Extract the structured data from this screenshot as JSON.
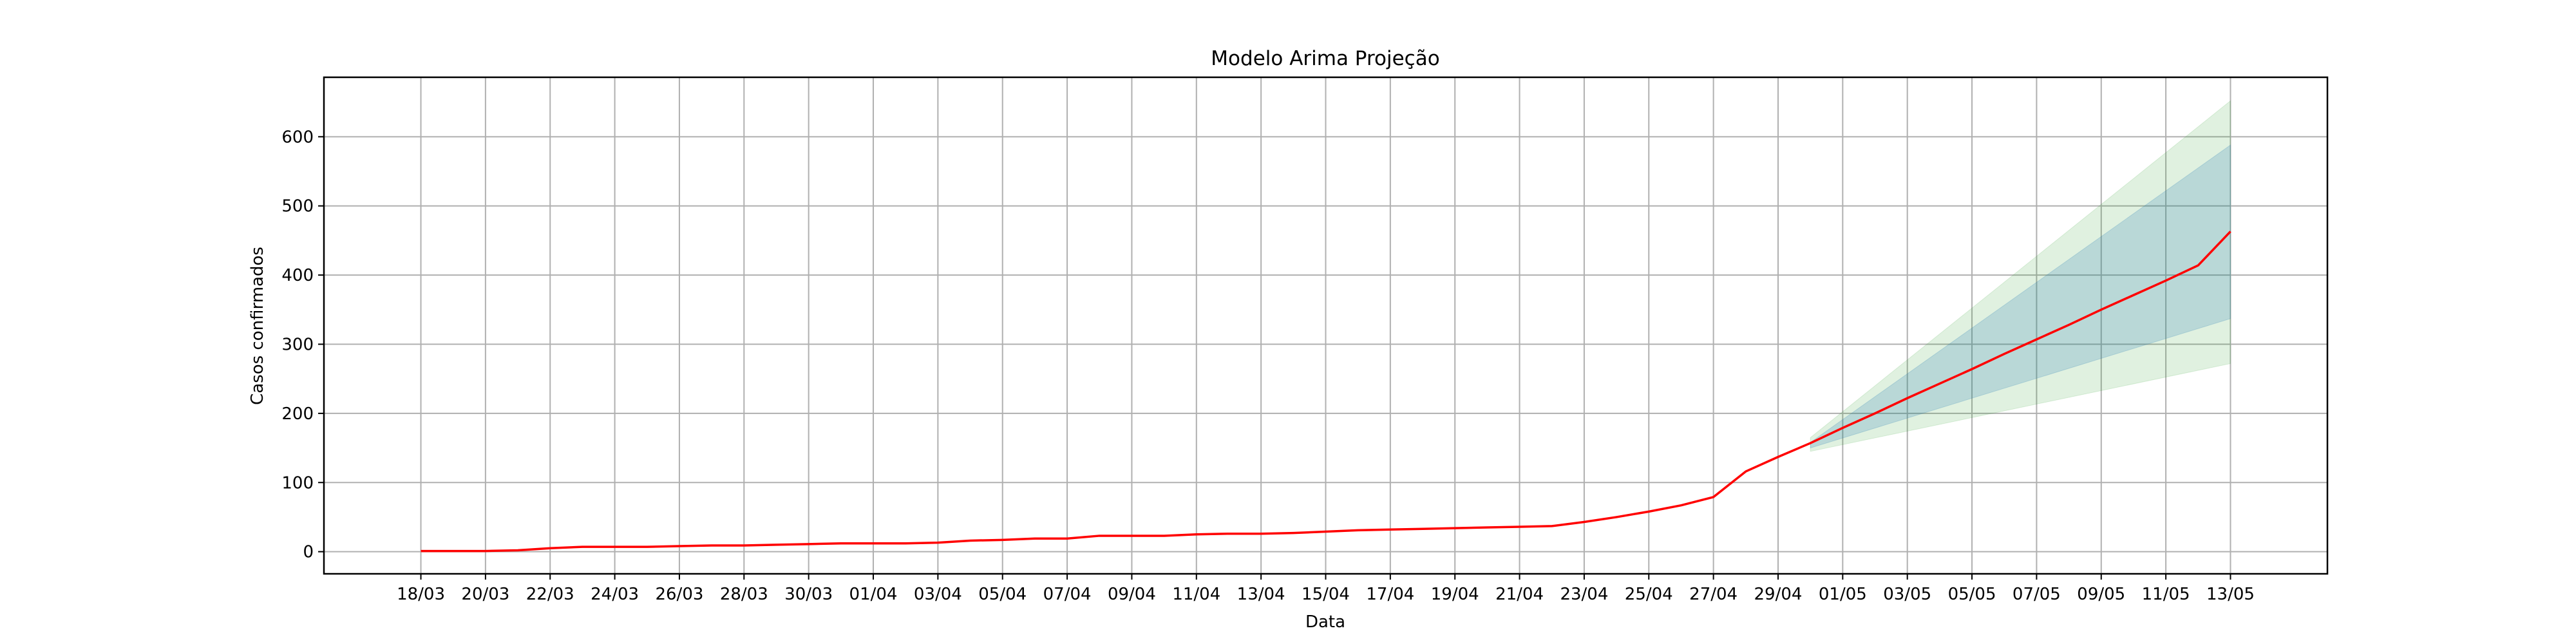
{
  "chart_data": {
    "type": "line",
    "title": "Modelo Arima Projeção",
    "xlabel": "Data",
    "ylabel": "Casos confirmados",
    "grid": true,
    "colors": {
      "line": "#ff0000",
      "ci_outer": "#2ca02c",
      "ci_inner": "#1f77b4"
    },
    "x_ticks": [
      "18/03",
      "20/03",
      "22/03",
      "24/03",
      "26/03",
      "28/03",
      "30/03",
      "01/04",
      "03/04",
      "05/04",
      "07/04",
      "09/04",
      "11/04",
      "13/04",
      "15/04",
      "17/04",
      "19/04",
      "21/04",
      "23/04",
      "25/04",
      "27/04",
      "29/04",
      "01/05",
      "03/05",
      "05/05",
      "07/05",
      "09/05",
      "11/05",
      "13/05"
    ],
    "y_ticks": [
      0,
      100,
      200,
      300,
      400,
      500,
      600
    ],
    "ylim": [
      -32,
      686
    ],
    "xlim_dates": [
      "2020-03-15",
      "2020-05-16"
    ],
    "series": [
      {
        "x": [
          "2020-03-18",
          "2020-03-19",
          "2020-03-20",
          "2020-03-21",
          "2020-03-22",
          "2020-03-23",
          "2020-03-24",
          "2020-03-25",
          "2020-03-26",
          "2020-03-27",
          "2020-03-28",
          "2020-03-29",
          "2020-03-30",
          "2020-03-31",
          "2020-04-01",
          "2020-04-02",
          "2020-04-03",
          "2020-04-04",
          "2020-04-05",
          "2020-04-06",
          "2020-04-07",
          "2020-04-08",
          "2020-04-09",
          "2020-04-10",
          "2020-04-11",
          "2020-04-12",
          "2020-04-13",
          "2020-04-14",
          "2020-04-15",
          "2020-04-16",
          "2020-04-17",
          "2020-04-18",
          "2020-04-19",
          "2020-04-20",
          "2020-04-21",
          "2020-04-22",
          "2020-04-23",
          "2020-04-24",
          "2020-04-25",
          "2020-04-26",
          "2020-04-27",
          "2020-04-28",
          "2020-04-29",
          "2020-04-30",
          "2020-05-01",
          "2020-05-02",
          "2020-05-03",
          "2020-05-04",
          "2020-05-05",
          "2020-05-06",
          "2020-05-07",
          "2020-05-08",
          "2020-05-09",
          "2020-05-10",
          "2020-05-11",
          "2020-05-12",
          "2020-05-13"
        ],
        "values": [
          1,
          1,
          1,
          2,
          5,
          7,
          7,
          7,
          8,
          9,
          9,
          10,
          11,
          12,
          12,
          12,
          13,
          16,
          17,
          19,
          19,
          23,
          23,
          23,
          25,
          26,
          26,
          27,
          29,
          31,
          32,
          33,
          34,
          35,
          36,
          37,
          43,
          50,
          58,
          67,
          79,
          116,
          137,
          157,
          179,
          200,
          222,
          243,
          264,
          286,
          307,
          328,
          350,
          371,
          392,
          414,
          463
        ]
      }
    ],
    "confidence_bands": [
      {
        "level": "outer",
        "x": [
          "2020-04-30",
          "2020-05-13"
        ],
        "lower": [
          145,
          272
        ],
        "upper": [
          165,
          652
        ]
      },
      {
        "level": "inner",
        "x": [
          "2020-04-30",
          "2020-05-13"
        ],
        "lower": [
          150,
          337
        ],
        "upper": [
          158,
          588
        ]
      }
    ]
  }
}
